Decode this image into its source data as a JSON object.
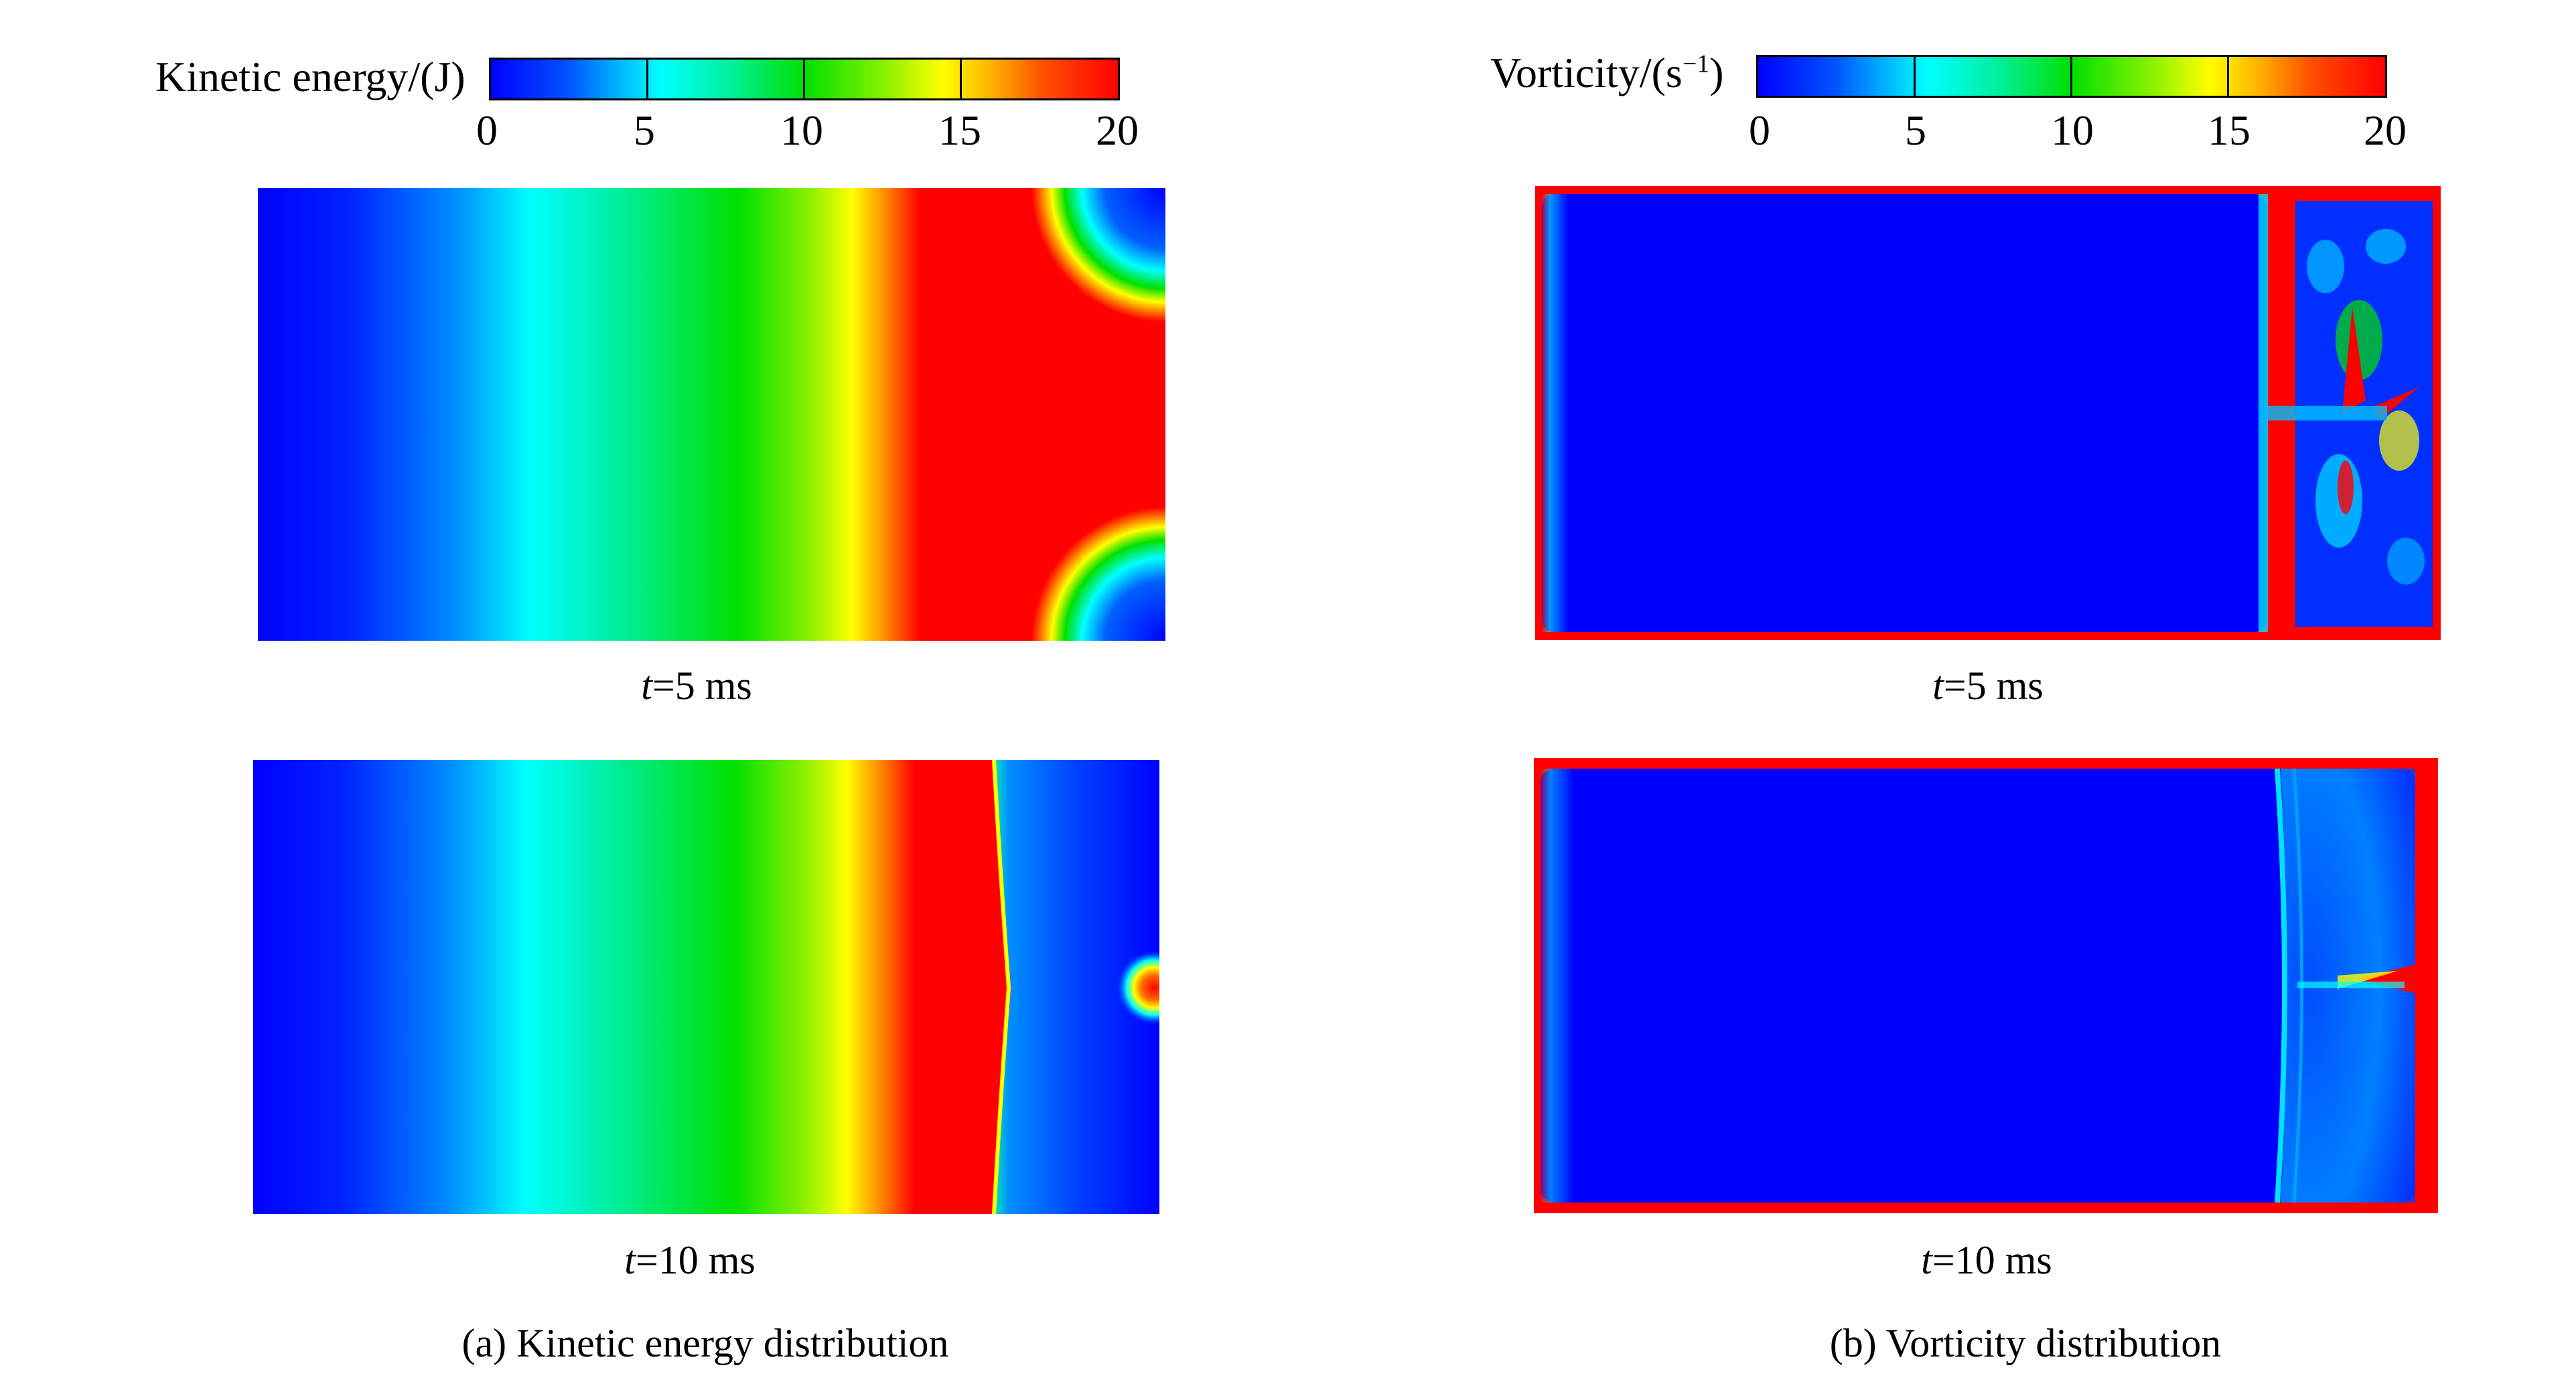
{
  "colorbars": {
    "kinetic": {
      "title": "Kinetic energy/(J)",
      "ticks": [
        "0",
        "5",
        "10",
        "15",
        "20"
      ],
      "range": [
        0,
        20
      ]
    },
    "vorticity": {
      "title_prefix": "Vorticity/(s",
      "title_sup": "−1",
      "title_suffix": ")",
      "ticks": [
        "0",
        "5",
        "10",
        "15",
        "20"
      ],
      "range": [
        0,
        20
      ]
    }
  },
  "time_labels": {
    "t_var": "t",
    "t5": "=5 ms",
    "t10": "=10 ms"
  },
  "captions": {
    "a": "(a) Kinetic energy distribution",
    "b": "(b)  Vorticity distribution"
  },
  "colors": {
    "low": "#0000ff",
    "mid_low": "#00ffff",
    "mid": "#00e000",
    "mid_high": "#ffff00",
    "high": "#ff0000"
  }
}
